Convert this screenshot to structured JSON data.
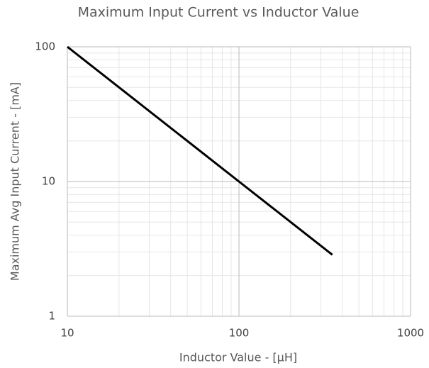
{
  "chart_data": {
    "type": "line",
    "title": "Maximum Input Current vs Inductor Value",
    "x_label": "Inductor Value - [µH]",
    "y_label": "Maximum Avg Input Current - [mA]",
    "x": [
      10,
      100,
      350
    ],
    "series": [
      {
        "name": "Maximum Avg Input Current",
        "color": "#000000",
        "values": [
          100,
          10,
          2.86
        ]
      }
    ],
    "xlim": [
      10,
      1000
    ],
    "ylim": [
      1,
      100
    ],
    "xticks": [
      10,
      100,
      1000
    ],
    "yticks": [
      1,
      10,
      100
    ],
    "x_log": true,
    "y_log": true,
    "grid": true
  }
}
